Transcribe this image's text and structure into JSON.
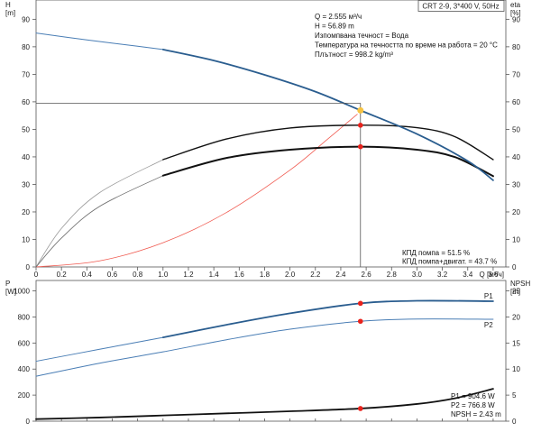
{
  "colors": {
    "blue": "#2a5d8f",
    "lightblue": "#4a7eb5",
    "black": "#111111",
    "gray": "#6b6b6b",
    "lightgray": "#9a9a9a",
    "red": "#f05a50",
    "marker_red": "#e8221c",
    "marker_yellow": "#f5c242",
    "frame": "#555555"
  },
  "product_box": "CRT 2-9, 3*400 V, 50Hz",
  "duty_info": [
    "Q = 2.555 м³/ч",
    "H = 56.89 m",
    "Изпомпвана течност = Вода",
    "Температура на течността по време на работа = 20 °C",
    "Плътност = 998.2 kg/m³"
  ],
  "efficiency_info": [
    "КПД помпа = 51.5 %",
    "КПД помпа+двигат. = 43.7 %"
  ],
  "power_info": [
    "P1 = 904.6 W",
    "P2 = 766.8 W",
    "NPSH = 2.43 m"
  ],
  "chart_data": [
    {
      "type": "line",
      "top_axis_labels": {
        "left_unit": "H",
        "left_unit2": "[m]",
        "right_unit": "eta",
        "right_unit2": "[%]"
      },
      "xlabel": "Q [м³/ч]",
      "xlim": [
        0,
        3.7
      ],
      "xticks": [
        "0",
        "0.2",
        "0.4",
        "0.6",
        "0.8",
        "1.0",
        "1.2",
        "1.4",
        "1.6",
        "1.8",
        "2.0",
        "2.2",
        "2.4",
        "2.6",
        "2.8",
        "3.0",
        "3.2",
        "3.4",
        "3.6"
      ],
      "ylim": [
        0,
        97
      ],
      "yticks": [
        "0",
        "10",
        "20",
        "30",
        "40",
        "50",
        "60",
        "70",
        "80",
        "90"
      ],
      "series": [
        {
          "role": "head_curve",
          "x": [
            0.0,
            0.4,
            0.8,
            1.0,
            1.4,
            1.8,
            2.2,
            2.555,
            3.0,
            3.4,
            3.6
          ],
          "y": [
            85,
            82.5,
            80.2,
            79,
            75,
            69.8,
            63.7,
            56.9,
            48.3,
            38.5,
            31.5
          ]
        },
        {
          "role": "efficiency_pump",
          "x": [
            0.0,
            0.2,
            0.5,
            1.0,
            1.5,
            2.0,
            2.555,
            3.0,
            3.3,
            3.6
          ],
          "y": [
            0,
            14,
            27,
            39,
            46.5,
            50.5,
            51.5,
            50.6,
            47.3,
            39
          ]
        },
        {
          "role": "efficiency_pump_motor",
          "x": [
            0.0,
            0.2,
            0.5,
            1.0,
            1.5,
            2.0,
            2.555,
            3.0,
            3.3,
            3.6
          ],
          "y": [
            0,
            10.5,
            22,
            33.2,
            39.6,
            42.6,
            43.7,
            42.6,
            39.9,
            33
          ]
        },
        {
          "role": "system_curve",
          "x": [
            0.0,
            0.5,
            1.0,
            1.5,
            2.0,
            2.3,
            2.53
          ],
          "y": [
            0,
            2.2,
            8.8,
            19.8,
            35.2,
            46.6,
            55.5
          ]
        }
      ],
      "duty_point": {
        "Q": 2.555,
        "H": 56.89,
        "eta_pump": 51.5,
        "eta_total": 43.7
      }
    },
    {
      "type": "line",
      "top_axis_labels": {
        "left_unit": "P",
        "left_unit2": "[W]",
        "right_unit": "NPSH",
        "right_unit2": "[m]"
      },
      "ylim_left": [
        0,
        1080
      ],
      "yticks_left": [
        "0",
        "200",
        "400",
        "600",
        "800",
        "1000"
      ],
      "ylim_right": [
        0,
        27
      ],
      "yticks_right": [
        "0",
        "5",
        "10",
        "15",
        "20",
        "25"
      ],
      "series": [
        {
          "name": "P1",
          "x": [
            0.0,
            0.5,
            1.0,
            1.5,
            2.0,
            2.555,
            3.0,
            3.6
          ],
          "y": [
            460,
            552,
            643,
            740,
            828,
            904.6,
            924,
            921
          ]
        },
        {
          "name": "P2",
          "x": [
            0.0,
            0.5,
            1.0,
            1.5,
            2.0,
            2.555,
            3.0,
            3.6
          ],
          "y": [
            345,
            445,
            532,
            625,
            706,
            766.8,
            784,
            782
          ]
        },
        {
          "role": "npsh",
          "axis": "right",
          "x": [
            0.0,
            0.5,
            1.0,
            1.5,
            2.0,
            2.555,
            3.0,
            3.3,
            3.6
          ],
          "y": [
            0.4,
            0.7,
            1.1,
            1.5,
            1.9,
            2.43,
            3.3,
            4.4,
            6.2
          ]
        }
      ],
      "duty_point": {
        "P1": 904.6,
        "P2": 766.8,
        "NPSH": 2.43
      }
    }
  ]
}
